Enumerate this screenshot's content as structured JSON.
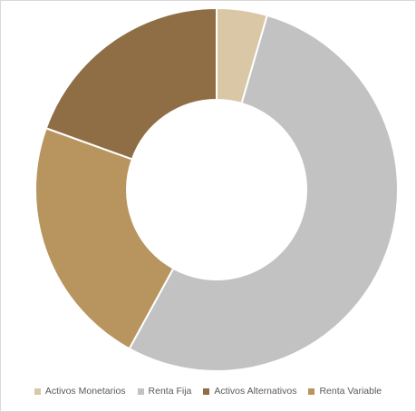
{
  "chart_data": {
    "type": "pie",
    "variant": "donut",
    "title": "",
    "legend_position": "bottom",
    "slices": [
      {
        "name": "Activos Monetarios",
        "value": 4.5,
        "color": "#d9c7a6"
      },
      {
        "name": "Renta Fija",
        "value": 53.5,
        "color": "#c2c2c2"
      },
      {
        "name": "Renta Variable",
        "value": 22.5,
        "color": "#b8955f"
      },
      {
        "name": "Activos Alternativos",
        "value": 19.5,
        "color": "#8f6e45"
      }
    ],
    "legend_order": [
      "Activos Monetarios",
      "Renta Fija",
      "Activos Alternativos",
      "Renta Variable"
    ]
  }
}
